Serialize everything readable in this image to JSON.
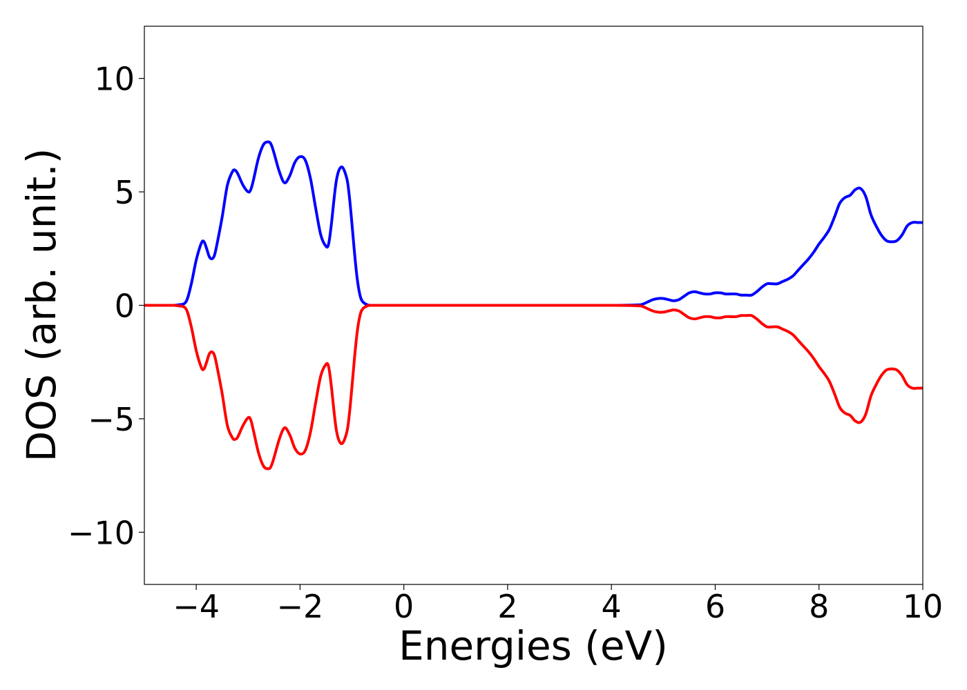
{
  "chart_data": {
    "type": "line",
    "title": "",
    "xlabel": "Energies (eV)",
    "ylabel": "DOS (arb. unit.)",
    "xlim": [
      -5,
      10
    ],
    "ylim": [
      -12.3,
      12.3
    ],
    "xticks": [
      -4,
      -2,
      0,
      2,
      4,
      6,
      8,
      10
    ],
    "xtick_labels": [
      "−4",
      "−2",
      "0",
      "2",
      "4",
      "6",
      "8",
      "10"
    ],
    "yticks": [
      -10,
      -5,
      0,
      5,
      10
    ],
    "ytick_labels": [
      "−10",
      "−5",
      "0",
      "5",
      "10"
    ],
    "grid": false,
    "series": [
      {
        "color": "#0000ff",
        "x": [
          -5.0,
          -4.5,
          -4.35,
          -4.2,
          -4.1,
          -4.0,
          -3.9,
          -3.85,
          -3.8,
          -3.75,
          -3.7,
          -3.65,
          -3.6,
          -3.5,
          -3.4,
          -3.3,
          -3.25,
          -3.2,
          -3.1,
          -3.0,
          -2.95,
          -2.9,
          -2.8,
          -2.7,
          -2.6,
          -2.55,
          -2.5,
          -2.4,
          -2.3,
          -2.2,
          -2.1,
          -2.0,
          -1.9,
          -1.8,
          -1.7,
          -1.6,
          -1.5,
          -1.45,
          -1.4,
          -1.3,
          -1.2,
          -1.1,
          -1.05,
          -1.0,
          -0.95,
          -0.9,
          -0.85,
          -0.8,
          -0.7,
          -0.6,
          -0.5,
          -0.4,
          0.0,
          2.0,
          4.0,
          4.5,
          4.6,
          4.7,
          4.8,
          4.9,
          5.0,
          5.1,
          5.2,
          5.3,
          5.4,
          5.5,
          5.6,
          5.7,
          5.8,
          5.9,
          6.0,
          6.1,
          6.2,
          6.3,
          6.4,
          6.5,
          6.6,
          6.7,
          6.8,
          6.9,
          7.0,
          7.1,
          7.2,
          7.3,
          7.4,
          7.5,
          7.6,
          7.7,
          7.8,
          7.9,
          8.0,
          8.1,
          8.2,
          8.3,
          8.4,
          8.5,
          8.6,
          8.7,
          8.8,
          8.9,
          9.0,
          9.1,
          9.2,
          9.3,
          9.4,
          9.5,
          9.6,
          9.7,
          9.8,
          9.9,
          10.0
        ],
        "y": [
          0.0,
          0.0,
          0.02,
          0.15,
          0.9,
          2.0,
          2.75,
          2.8,
          2.5,
          2.15,
          2.05,
          2.2,
          2.7,
          3.9,
          5.3,
          5.9,
          5.95,
          5.8,
          5.3,
          5.0,
          5.1,
          5.5,
          6.5,
          7.1,
          7.2,
          7.05,
          6.7,
          5.9,
          5.4,
          5.7,
          6.3,
          6.55,
          6.4,
          5.6,
          4.3,
          3.1,
          2.6,
          2.7,
          3.5,
          5.5,
          6.1,
          5.6,
          4.8,
          3.6,
          2.3,
          1.2,
          0.5,
          0.18,
          0.02,
          0.0,
          0.0,
          0.0,
          0.0,
          0.0,
          0.0,
          0.02,
          0.05,
          0.15,
          0.25,
          0.3,
          0.3,
          0.25,
          0.2,
          0.25,
          0.4,
          0.55,
          0.6,
          0.55,
          0.5,
          0.5,
          0.55,
          0.55,
          0.5,
          0.5,
          0.5,
          0.45,
          0.45,
          0.45,
          0.6,
          0.8,
          0.95,
          0.95,
          0.95,
          1.05,
          1.15,
          1.3,
          1.55,
          1.8,
          2.05,
          2.35,
          2.7,
          3.0,
          3.35,
          3.9,
          4.5,
          4.75,
          4.85,
          5.1,
          5.15,
          4.8,
          4.0,
          3.5,
          3.1,
          2.85,
          2.8,
          2.85,
          3.1,
          3.5,
          3.65,
          3.65,
          3.65
        ]
      },
      {
        "color": "#ff0000",
        "x": [
          -5.0,
          -4.5,
          -4.35,
          -4.2,
          -4.1,
          -4.0,
          -3.9,
          -3.85,
          -3.8,
          -3.75,
          -3.7,
          -3.65,
          -3.6,
          -3.5,
          -3.4,
          -3.3,
          -3.25,
          -3.2,
          -3.1,
          -3.0,
          -2.95,
          -2.9,
          -2.8,
          -2.7,
          -2.6,
          -2.55,
          -2.5,
          -2.4,
          -2.3,
          -2.2,
          -2.1,
          -2.0,
          -1.9,
          -1.8,
          -1.7,
          -1.6,
          -1.5,
          -1.45,
          -1.4,
          -1.3,
          -1.2,
          -1.1,
          -1.05,
          -1.0,
          -0.95,
          -0.9,
          -0.85,
          -0.8,
          -0.7,
          -0.6,
          -0.5,
          -0.4,
          0.0,
          2.0,
          4.0,
          4.5,
          4.6,
          4.7,
          4.8,
          4.9,
          5.0,
          5.1,
          5.2,
          5.3,
          5.4,
          5.5,
          5.6,
          5.7,
          5.8,
          5.9,
          6.0,
          6.1,
          6.2,
          6.3,
          6.4,
          6.5,
          6.6,
          6.7,
          6.8,
          6.9,
          7.0,
          7.1,
          7.2,
          7.3,
          7.4,
          7.5,
          7.6,
          7.7,
          7.8,
          7.9,
          8.0,
          8.1,
          8.2,
          8.3,
          8.4,
          8.5,
          8.6,
          8.7,
          8.8,
          8.9,
          9.0,
          9.1,
          9.2,
          9.3,
          9.4,
          9.5,
          9.6,
          9.7,
          9.8,
          9.9,
          10.0
        ],
        "y": [
          0.0,
          0.0,
          -0.02,
          -0.15,
          -0.9,
          -2.0,
          -2.75,
          -2.8,
          -2.5,
          -2.15,
          -2.05,
          -2.2,
          -2.7,
          -3.9,
          -5.3,
          -5.85,
          -5.9,
          -5.8,
          -5.3,
          -4.95,
          -5.05,
          -5.5,
          -6.5,
          -7.1,
          -7.2,
          -7.05,
          -6.7,
          -5.9,
          -5.4,
          -5.7,
          -6.3,
          -6.55,
          -6.4,
          -5.6,
          -4.3,
          -3.1,
          -2.6,
          -2.7,
          -3.5,
          -5.5,
          -6.1,
          -5.6,
          -4.8,
          -3.6,
          -2.3,
          -1.2,
          -0.5,
          -0.18,
          -0.02,
          0.0,
          0.0,
          0.0,
          0.0,
          0.0,
          0.0,
          -0.02,
          -0.05,
          -0.15,
          -0.25,
          -0.3,
          -0.3,
          -0.25,
          -0.2,
          -0.25,
          -0.4,
          -0.55,
          -0.6,
          -0.55,
          -0.5,
          -0.5,
          -0.55,
          -0.55,
          -0.5,
          -0.5,
          -0.5,
          -0.45,
          -0.45,
          -0.45,
          -0.6,
          -0.8,
          -0.95,
          -0.95,
          -0.95,
          -1.05,
          -1.15,
          -1.3,
          -1.55,
          -1.8,
          -2.05,
          -2.35,
          -2.7,
          -3.0,
          -3.35,
          -3.9,
          -4.5,
          -4.75,
          -4.85,
          -5.1,
          -5.15,
          -4.8,
          -4.0,
          -3.5,
          -3.1,
          -2.85,
          -2.8,
          -2.85,
          -3.1,
          -3.5,
          -3.65,
          -3.65,
          -3.65
        ]
      }
    ]
  }
}
